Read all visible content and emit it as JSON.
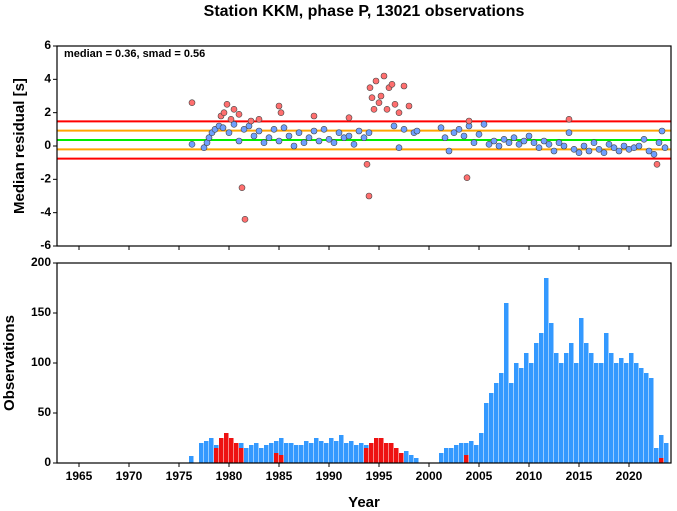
{
  "chart_data": [
    {
      "type": "scatter",
      "title": "Station KKM, phase P, 13021 observations",
      "annotation": "median = 0.36, smad = 0.56",
      "y_label": "Median residual [s]",
      "xlim": [
        1962.8,
        2024.2
      ],
      "ylim": [
        -6,
        6
      ],
      "yticks": [
        -6,
        -4,
        -2,
        0,
        2,
        4,
        6
      ],
      "xticks": [
        1965,
        1970,
        1975,
        1980,
        1985,
        1990,
        1995,
        2000,
        2005,
        2010,
        2015,
        2020
      ],
      "hlines": [
        {
          "value": 1.48,
          "color": "#ff0000"
        },
        {
          "value": 0.92,
          "color": "#ffa500"
        },
        {
          "value": 0.36,
          "color": "#00ee00"
        },
        {
          "value": -0.2,
          "color": "#ffa500"
        },
        {
          "value": -0.76,
          "color": "#ff0000"
        }
      ],
      "series": [
        {
          "color": "#6fa0ff",
          "x": [
            1976.3,
            1977.5,
            1977.8,
            1978.0,
            1978.3,
            1978.6,
            1979.0,
            1979.4,
            1980.0,
            1980.5,
            1981.0,
            1981.5,
            1982.0,
            1982.5,
            1983.0,
            1983.5,
            1984.0,
            1984.5,
            1985.0,
            1985.5,
            1986.0,
            1986.5,
            1987.0,
            1987.5,
            1988.0,
            1988.5,
            1989.0,
            1989.5,
            1990.0,
            1990.5,
            1991.0,
            1991.5,
            1992.0,
            1992.5,
            1993.0,
            1993.5,
            1994.0,
            1996.5,
            1997.0,
            1997.5,
            1998.5,
            1998.8,
            2001.2,
            2001.6,
            2002.0,
            2002.5,
            2003.0,
            2003.5,
            2004.0,
            2004.5,
            2005.0,
            2005.5,
            2006.0,
            2006.5,
            2007.0,
            2007.5,
            2008.0,
            2008.5,
            2009.0,
            2009.5,
            2010.0,
            2010.5,
            2011.0,
            2011.5,
            2012.0,
            2012.5,
            2013.0,
            2013.5,
            2014.0,
            2014.5,
            2015.0,
            2015.5,
            2016.0,
            2016.5,
            2017.0,
            2017.5,
            2018.0,
            2018.5,
            2019.0,
            2019.5,
            2020.0,
            2020.5,
            2021.0,
            2021.5,
            2022.0,
            2022.5,
            2023.0,
            2023.3,
            2023.6
          ],
          "values": [
            0.1,
            -0.1,
            0.2,
            0.5,
            0.8,
            1.0,
            1.2,
            1.1,
            0.8,
            1.3,
            0.3,
            1.0,
            1.2,
            0.6,
            0.9,
            0.2,
            0.5,
            1.0,
            0.3,
            1.1,
            0.6,
            0.0,
            0.8,
            0.2,
            0.5,
            0.9,
            0.3,
            1.0,
            0.4,
            0.2,
            0.8,
            0.5,
            0.6,
            0.1,
            0.9,
            0.5,
            0.8,
            1.2,
            -0.1,
            1.0,
            0.8,
            0.9,
            1.1,
            0.5,
            -0.3,
            0.8,
            1.0,
            0.6,
            1.2,
            0.2,
            0.7,
            1.3,
            0.1,
            0.3,
            0.0,
            0.4,
            0.2,
            0.5,
            0.1,
            0.3,
            0.6,
            0.2,
            -0.1,
            0.3,
            0.1,
            -0.3,
            0.2,
            0.0,
            0.8,
            -0.2,
            -0.4,
            0.0,
            -0.3,
            0.2,
            -0.2,
            -0.4,
            0.1,
            -0.1,
            -0.3,
            0.0,
            -0.2,
            -0.1,
            0.0,
            0.4,
            -0.3,
            -0.5,
            0.2,
            0.9,
            -0.1
          ]
        },
        {
          "color": "#ff6f6f",
          "x": [
            1976.3,
            1979.2,
            1979.5,
            1979.8,
            1980.2,
            1980.5,
            1981.0,
            1981.3,
            1981.6,
            1982.2,
            1983.0,
            1985.0,
            1985.2,
            1988.5,
            1992.0,
            1993.8,
            1994.0,
            1994.1,
            1994.3,
            1994.5,
            1994.7,
            1995.0,
            1995.2,
            1995.5,
            1995.8,
            1996.0,
            1996.3,
            1996.6,
            1997.0,
            1997.5,
            1998.0,
            2003.8,
            2004.0,
            2014.0,
            2022.8
          ],
          "values": [
            2.6,
            1.8,
            2.0,
            2.5,
            1.6,
            2.2,
            1.9,
            -2.5,
            -4.4,
            1.5,
            1.6,
            2.4,
            2.0,
            1.8,
            1.7,
            -1.1,
            -3.0,
            3.5,
            2.9,
            2.2,
            3.9,
            2.6,
            3.0,
            4.2,
            2.2,
            3.5,
            3.7,
            2.5,
            2.0,
            3.6,
            2.4,
            -1.9,
            1.5,
            1.6,
            -1.1
          ]
        }
      ]
    },
    {
      "type": "bar",
      "x_label": "Year",
      "y_label": "Observations",
      "xlim": [
        1962.8,
        2024.2
      ],
      "ylim": [
        0,
        200
      ],
      "yticks": [
        0,
        50,
        100,
        150,
        200
      ],
      "xticks": [
        1965,
        1970,
        1975,
        1980,
        1985,
        1990,
        1995,
        2000,
        2005,
        2010,
        2015,
        2020
      ],
      "series": [
        {
          "color": "#3399ff",
          "x": [
            1976.0,
            1976.5,
            1977.0,
            1977.5,
            1978.0,
            1978.5,
            1979.0,
            1979.5,
            1980.0,
            1980.5,
            1981.0,
            1981.5,
            1982.0,
            1982.5,
            1983.0,
            1983.5,
            1984.0,
            1984.5,
            1985.0,
            1985.5,
            1986.0,
            1986.5,
            1987.0,
            1987.5,
            1988.0,
            1988.5,
            1989.0,
            1989.5,
            1990.0,
            1990.5,
            1991.0,
            1991.5,
            1992.0,
            1992.5,
            1993.0,
            1993.5,
            1994.0,
            1994.5,
            1995.0,
            1995.5,
            1996.0,
            1996.5,
            1997.0,
            1997.5,
            1998.0,
            1998.5,
            2001.0,
            2001.5,
            2002.0,
            2002.5,
            2003.0,
            2003.5,
            2004.0,
            2004.5,
            2005.0,
            2005.5,
            2006.0,
            2006.5,
            2007.0,
            2007.5,
            2008.0,
            2008.5,
            2009.0,
            2009.5,
            2010.0,
            2010.5,
            2011.0,
            2011.5,
            2012.0,
            2012.5,
            2013.0,
            2013.5,
            2014.0,
            2014.5,
            2015.0,
            2015.5,
            2016.0,
            2016.5,
            2017.0,
            2017.5,
            2018.0,
            2018.5,
            2019.0,
            2019.5,
            2020.0,
            2020.5,
            2021.0,
            2021.5,
            2022.0,
            2022.5,
            2023.0,
            2023.5
          ],
          "values": [
            7,
            0,
            20,
            22,
            25,
            18,
            20,
            22,
            25,
            18,
            20,
            15,
            18,
            20,
            15,
            18,
            20,
            22,
            25,
            20,
            20,
            18,
            18,
            22,
            20,
            25,
            22,
            20,
            25,
            22,
            28,
            20,
            22,
            18,
            20,
            18,
            15,
            12,
            15,
            18,
            15,
            15,
            10,
            12,
            8,
            5,
            10,
            15,
            15,
            18,
            20,
            20,
            22,
            18,
            30,
            60,
            70,
            80,
            90,
            160,
            80,
            100,
            95,
            110,
            100,
            120,
            130,
            185,
            140,
            110,
            100,
            110,
            120,
            100,
            145,
            120,
            110,
            100,
            100,
            130,
            110,
            100,
            105,
            100,
            110,
            100,
            95,
            90,
            85,
            15,
            28,
            20
          ]
        },
        {
          "color": "#ee1111",
          "x": [
            1978.5,
            1979.0,
            1979.5,
            1980.0,
            1980.5,
            1981.0,
            1984.5,
            1985.0,
            1993.5,
            1994.0,
            1994.5,
            1995.0,
            1995.5,
            1996.0,
            1996.5,
            1997.0,
            2003.5,
            2023.0
          ],
          "values": [
            15,
            25,
            30,
            25,
            20,
            15,
            10,
            8,
            15,
            20,
            25,
            25,
            20,
            20,
            15,
            10,
            8,
            5
          ]
        }
      ]
    }
  ]
}
